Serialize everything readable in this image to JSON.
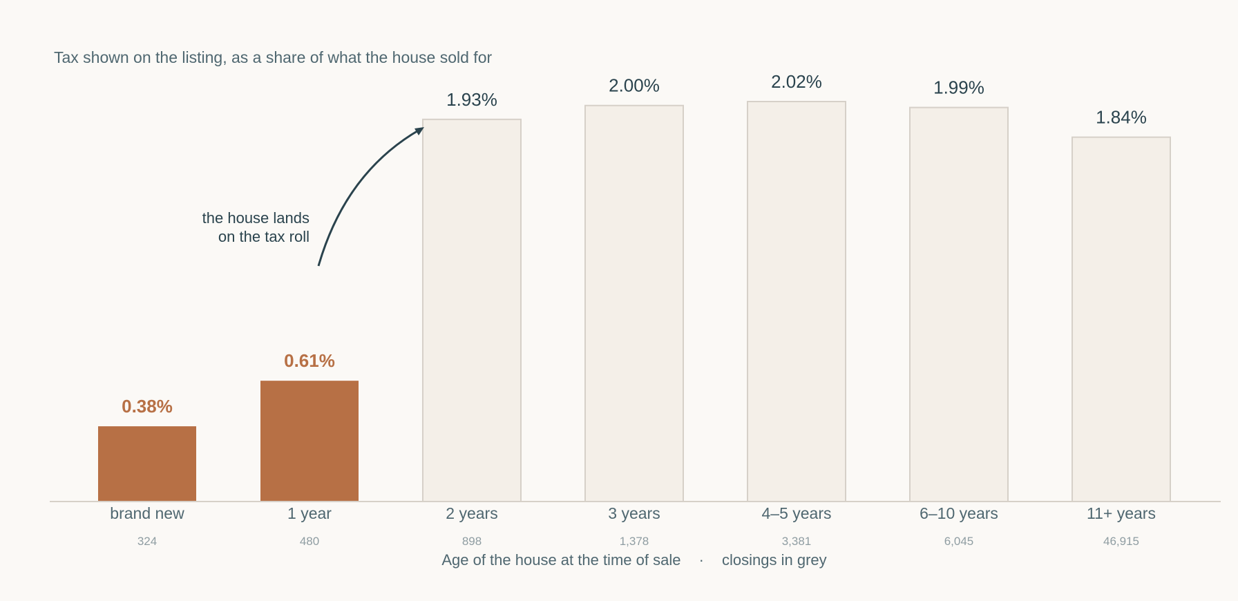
{
  "chart_data": {
    "type": "bar",
    "title": "Tax shown on the listing, as a share of what the house sold for",
    "categories": [
      "brand new",
      "1 year",
      "2 years",
      "3 years",
      "4–5 years",
      "6–10 years",
      "11+ years"
    ],
    "values": [
      0.38,
      0.61,
      1.93,
      2.0,
      2.02,
      1.99,
      1.84
    ],
    "value_labels": [
      "0.38%",
      "0.61%",
      "1.93%",
      "2.00%",
      "2.02%",
      "1.99%",
      "1.84%"
    ],
    "closings": [
      "324",
      "480",
      "898",
      "1,378",
      "3,381",
      "6,045",
      "46,915"
    ],
    "highlight_count": 2,
    "xlabel": "Age of the house at the time of sale",
    "xlabel_separator": "·",
    "xlabel_note": "closings in grey",
    "ylabel": "",
    "ylim": [
      0,
      2.02
    ],
    "grid": false,
    "annotation": {
      "lines": [
        "the house lands",
        "on the tax roll"
      ],
      "target_category": "2 years"
    },
    "colors": {
      "highlight": "#b77045",
      "muted_fill": "#f4efe8",
      "muted_stroke": "#d6d0c8",
      "text_dark": "#2a434d",
      "text_mid": "#4f6770",
      "text_light": "#8f9da2",
      "background": "#fbf9f6"
    }
  }
}
